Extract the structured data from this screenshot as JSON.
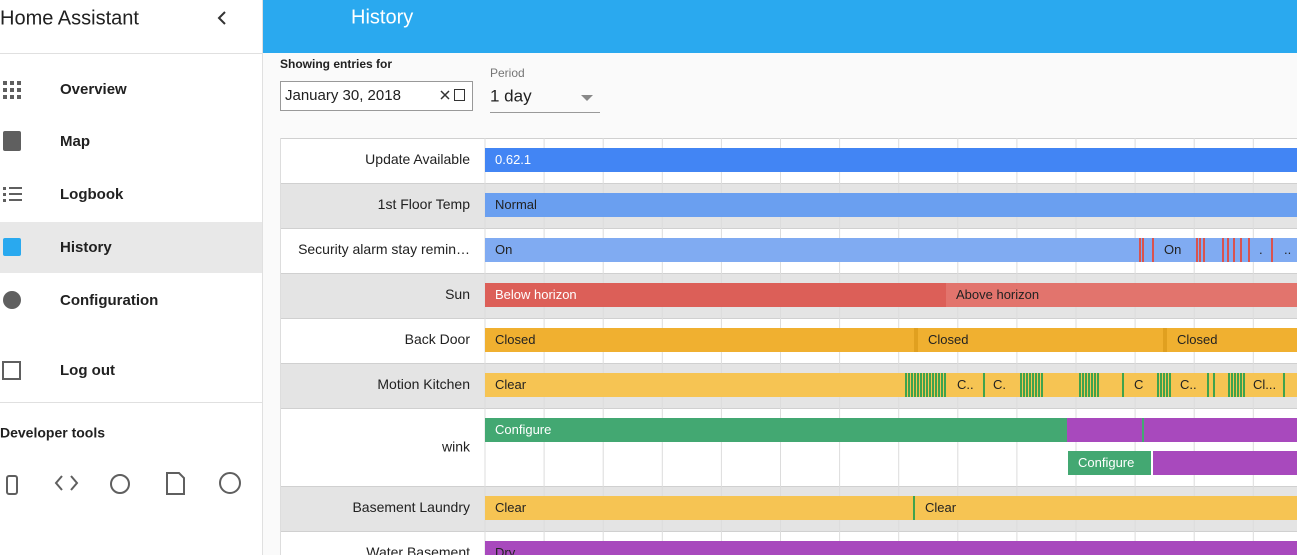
{
  "sidebar": {
    "title": "Home Assistant",
    "menu": [
      "Overview",
      "Map",
      "Logbook",
      "History",
      "Configuration",
      "Log out"
    ],
    "developer_tools": "Developer tools"
  },
  "header": {
    "title": "History"
  },
  "controls": {
    "label": "Showing entries for",
    "date": "January 30, 2018",
    "period_label": "Period",
    "period_value": "1 day"
  },
  "timeline": {
    "rows": [
      {
        "label": "Update Available",
        "states": [
          "0.62.1"
        ]
      },
      {
        "label": "1st Floor Temp",
        "states": [
          "Normal"
        ]
      },
      {
        "label": "Security alarm stay remin…",
        "states": [
          "On",
          "On",
          ".",
          ".."
        ]
      },
      {
        "label": "Sun",
        "states": [
          "Below horizon",
          "Above horizon"
        ]
      },
      {
        "label": "Back Door",
        "states": [
          "Closed",
          "Closed",
          "Closed"
        ]
      },
      {
        "label": "Motion Kitchen",
        "states": [
          "Clear",
          "C..",
          "C.",
          "C",
          "C..",
          "Cl..."
        ]
      },
      {
        "label": "wink",
        "states": [
          "Configure",
          "Configure"
        ]
      },
      {
        "label": "Basement Laundry",
        "states": [
          "Clear",
          "Clear"
        ]
      },
      {
        "label": "Water Basement",
        "states": [
          "Dry"
        ]
      }
    ]
  }
}
